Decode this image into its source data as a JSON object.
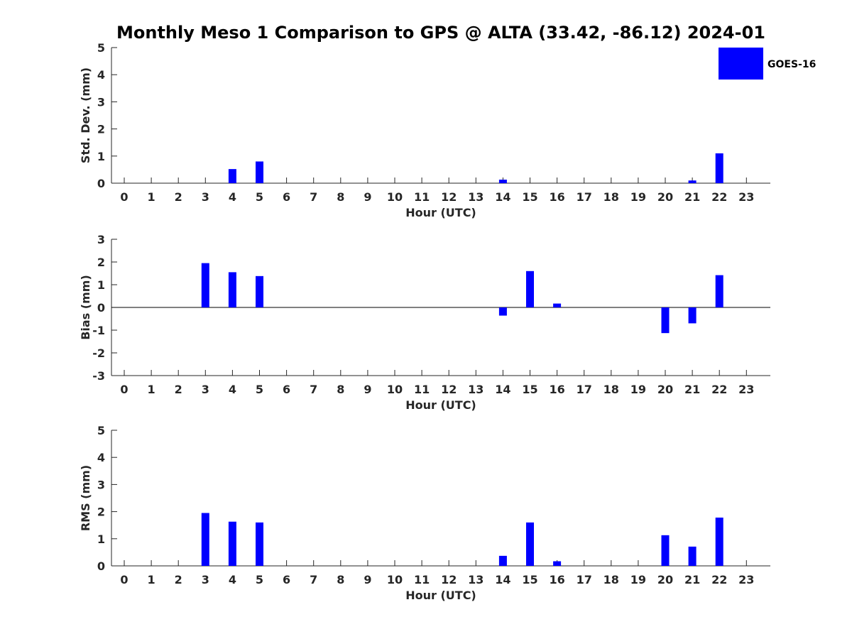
{
  "title": "Monthly Meso 1 Comparison to GPS @ ALTA (33.42, -86.12) 2024-01",
  "legend": {
    "label": "GOES-16",
    "color": "#0000ff"
  },
  "chart_data": [
    {
      "type": "bar",
      "ylabel": "Std. Dev. (mm)",
      "xlabel": "Hour (UTC)",
      "ylim": [
        0,
        5
      ],
      "yticks": [
        0,
        1,
        2,
        3,
        4,
        5
      ],
      "zero_line": false,
      "categories": [
        "0",
        "1",
        "2",
        "3",
        "4",
        "5",
        "6",
        "7",
        "8",
        "9",
        "10",
        "11",
        "12",
        "13",
        "14",
        "15",
        "16",
        "17",
        "18",
        "19",
        "20",
        "21",
        "22",
        "23"
      ],
      "series": [
        {
          "name": "GOES-16",
          "values": [
            null,
            null,
            null,
            0,
            0.52,
            0.8,
            null,
            null,
            null,
            null,
            null,
            null,
            null,
            null,
            0.13,
            0,
            0,
            null,
            null,
            null,
            0,
            0.1,
            1.1,
            null
          ]
        }
      ]
    },
    {
      "type": "bar",
      "ylabel": "Bias (mm)",
      "xlabel": "Hour (UTC)",
      "ylim": [
        -3,
        3
      ],
      "yticks": [
        -3,
        -2,
        -1,
        0,
        1,
        2,
        3
      ],
      "zero_line": true,
      "categories": [
        "0",
        "1",
        "2",
        "3",
        "4",
        "5",
        "6",
        "7",
        "8",
        "9",
        "10",
        "11",
        "12",
        "13",
        "14",
        "15",
        "16",
        "17",
        "18",
        "19",
        "20",
        "21",
        "22",
        "23"
      ],
      "series": [
        {
          "name": "GOES-16",
          "values": [
            null,
            null,
            null,
            1.95,
            1.55,
            1.38,
            null,
            null,
            null,
            null,
            null,
            null,
            null,
            null,
            -0.36,
            1.6,
            0.17,
            null,
            null,
            null,
            -1.13,
            -0.7,
            1.42,
            null
          ]
        }
      ]
    },
    {
      "type": "bar",
      "ylabel": "RMS (mm)",
      "xlabel": "Hour (UTC)",
      "ylim": [
        0,
        5
      ],
      "yticks": [
        0,
        1,
        2,
        3,
        4,
        5
      ],
      "zero_line": false,
      "categories": [
        "0",
        "1",
        "2",
        "3",
        "4",
        "5",
        "6",
        "7",
        "8",
        "9",
        "10",
        "11",
        "12",
        "13",
        "14",
        "15",
        "16",
        "17",
        "18",
        "19",
        "20",
        "21",
        "22",
        "23"
      ],
      "series": [
        {
          "name": "GOES-16",
          "values": [
            null,
            null,
            null,
            1.95,
            1.63,
            1.6,
            null,
            null,
            null,
            null,
            null,
            null,
            null,
            null,
            0.37,
            1.6,
            0.17,
            null,
            null,
            null,
            1.13,
            0.71,
            1.78,
            null
          ]
        }
      ]
    }
  ]
}
